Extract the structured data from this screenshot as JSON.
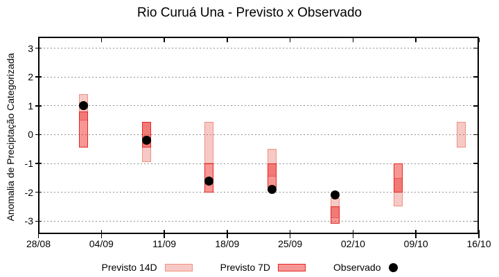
{
  "chart_data": {
    "type": "bar",
    "subtype": "floating-range-boxes-with-observed-scatter",
    "title": "Rio Curuá Una - Previsto x Observado",
    "ylabel": "Anomalia de Preciptação Categorizada",
    "xlabel": "",
    "ylim": [
      -3.45,
      3.4
    ],
    "grid": "horizontal dotted lines at each integer y",
    "legend_position": "bottom-center",
    "y_ticks": [
      3,
      2,
      1,
      0,
      -1,
      -2,
      -3
    ],
    "x_ticks": {
      "labels": [
        "28/08",
        "04/09",
        "11/09",
        "18/09",
        "25/09",
        "02/10",
        "09/10",
        "16/10"
      ],
      "days": [
        0,
        7,
        14,
        21,
        28,
        35,
        42,
        49
      ],
      "total_days": 49
    },
    "categories": [
      "02/09",
      "09/09",
      "16/09",
      "23/09",
      "30/09",
      "07/10",
      "14/10"
    ],
    "category_days": [
      5,
      12,
      19,
      26,
      33,
      40,
      47
    ],
    "series": [
      {
        "name": "Previsto 14D",
        "kind": "range-box",
        "fill": "rgba(224,60,49,0.28)",
        "border": "#f0907e",
        "ranges": [
          [
            0.5,
            1.4
          ],
          [
            -0.95,
            0.45
          ],
          [
            -1.0,
            0.45
          ],
          [
            -1.45,
            -0.5
          ],
          [
            -2.9,
            -2.2
          ],
          [
            -2.5,
            -1.5
          ],
          [
            -0.45,
            0.45
          ]
        ]
      },
      {
        "name": "Previsto 7D",
        "kind": "range-box",
        "fill": "rgba(235,25,20,0.45)",
        "border": "#e42522",
        "ranges": [
          [
            -0.45,
            0.8
          ],
          [
            -0.45,
            0.45
          ],
          [
            -2.0,
            -1.0
          ],
          [
            -1.85,
            -1.0
          ],
          [
            -3.1,
            -2.5
          ],
          [
            -2.0,
            -1.0
          ],
          null
        ]
      },
      {
        "name": "Observado",
        "kind": "scatter",
        "color": "#000000",
        "marker": "filled-circle",
        "values": [
          1.0,
          -0.2,
          -1.6,
          -1.9,
          -2.1,
          null,
          null
        ]
      }
    ],
    "colors": {
      "frame": "#000000",
      "grid": "#909090",
      "background": "#ffffff"
    }
  }
}
